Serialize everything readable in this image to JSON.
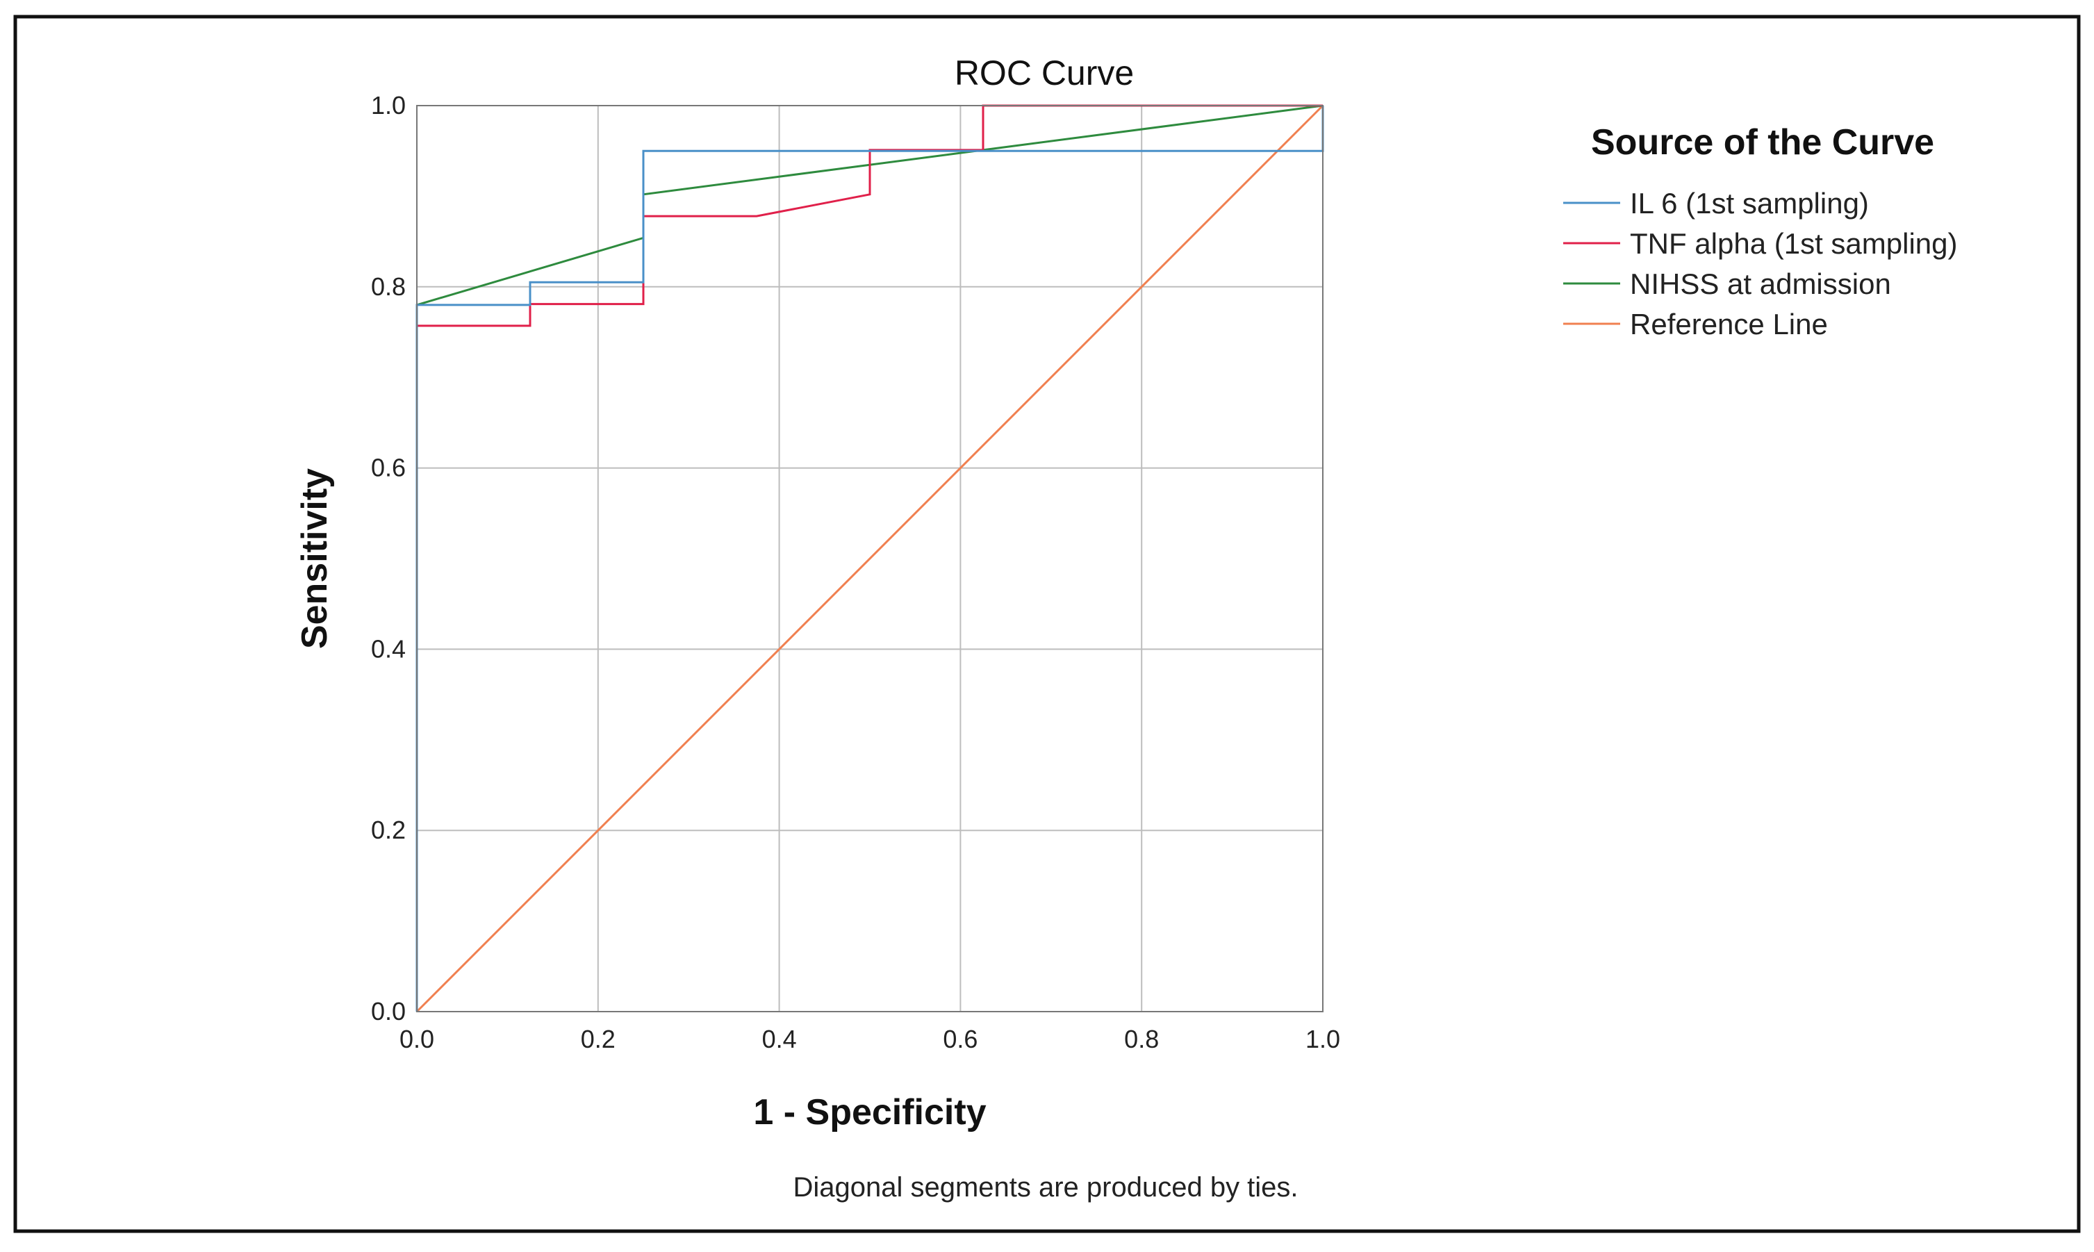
{
  "chart_data": {
    "type": "line",
    "title": "ROC Curve",
    "xlabel": "1 - Specificity",
    "ylabel": "Sensitivity",
    "xlim": [
      0.0,
      1.0
    ],
    "ylim": [
      0.0,
      1.0
    ],
    "x_ticks": [
      "0.0",
      "0.2",
      "0.4",
      "0.6",
      "0.8",
      "1.0"
    ],
    "y_ticks": [
      "0.0",
      "0.2",
      "0.4",
      "0.6",
      "0.8",
      "1.0"
    ],
    "x_tick_values": [
      0.0,
      0.2,
      0.4,
      0.6,
      0.8,
      1.0
    ],
    "y_tick_values": [
      0.0,
      0.2,
      0.4,
      0.6,
      0.8,
      1.0
    ],
    "grid": true,
    "legend_title": "Source of the Curve",
    "legend_position": "right",
    "footnote": "Diagonal segments are produced by ties.",
    "series": [
      {
        "name": "IL 6 (1st sampling)",
        "color": "#4a90c8",
        "points": [
          [
            0,
            0
          ],
          [
            0,
            0.78
          ],
          [
            0.125,
            0.78
          ],
          [
            0.125,
            0.805
          ],
          [
            0.25,
            0.805
          ],
          [
            0.25,
            0.95
          ],
          [
            1.0,
            0.95
          ],
          [
            1.0,
            1.0
          ]
        ]
      },
      {
        "name": "TNF alpha (1st sampling)",
        "color": "#e0204a",
        "points": [
          [
            0,
            0
          ],
          [
            0,
            0.757
          ],
          [
            0.125,
            0.757
          ],
          [
            0.125,
            0.781
          ],
          [
            0.25,
            0.781
          ],
          [
            0.25,
            0.878
          ],
          [
            0.375,
            0.878
          ],
          [
            0.5,
            0.902
          ],
          [
            0.5,
            0.951
          ],
          [
            0.625,
            0.951
          ],
          [
            0.625,
            1.0
          ],
          [
            1.0,
            1.0
          ]
        ]
      },
      {
        "name": "NIHSS at admission",
        "color": "#2e8b3e",
        "points": [
          [
            0,
            0
          ],
          [
            0,
            0.78
          ],
          [
            0.25,
            0.854
          ],
          [
            0.25,
            0.902
          ],
          [
            0.625,
            0.951
          ],
          [
            1.0,
            1.0
          ]
        ]
      },
      {
        "name": "Reference Line",
        "color": "#f08050",
        "points": [
          [
            0,
            0
          ],
          [
            1.0,
            1.0
          ]
        ]
      }
    ]
  }
}
